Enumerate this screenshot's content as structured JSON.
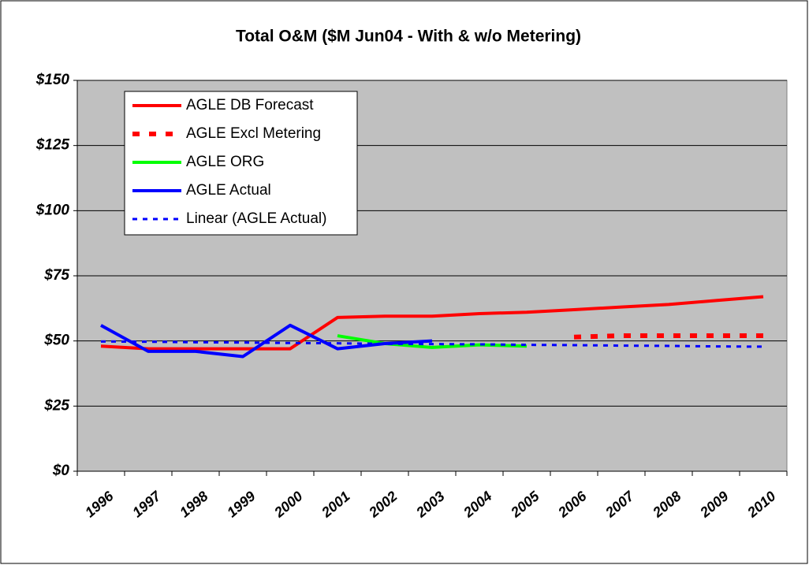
{
  "chart_data": {
    "type": "line",
    "title": "Total O&M ($M Jun04 - With & w/o Metering)",
    "categories": [
      "1996",
      "1997",
      "1998",
      "1999",
      "2000",
      "2001",
      "2002",
      "2003",
      "2004",
      "2005",
      "2006",
      "2007",
      "2008",
      "2009",
      "2010"
    ],
    "series": [
      {
        "name": "AGLE DB Forecast",
        "color": "#ff0000",
        "style": "solid",
        "values": [
          48,
          47,
          47,
          47,
          47,
          59,
          59.5,
          59.5,
          60.5,
          61,
          62,
          63,
          64,
          65.5,
          67
        ]
      },
      {
        "name": "AGLE Excl Metering",
        "color": "#ff0000",
        "style": "dashed",
        "values": [
          null,
          null,
          null,
          null,
          null,
          null,
          null,
          null,
          null,
          null,
          51.5,
          52,
          52,
          52,
          52
        ]
      },
      {
        "name": "AGLE ORG",
        "color": "#00ff00",
        "style": "solid",
        "values": [
          null,
          null,
          null,
          null,
          null,
          52,
          49,
          47.5,
          48.5,
          48,
          null,
          null,
          null,
          null,
          null
        ]
      },
      {
        "name": "AGLE Actual",
        "color": "#0000ff",
        "style": "solid",
        "values": [
          56,
          46,
          46,
          44,
          56,
          47,
          49,
          50,
          null,
          null,
          null,
          null,
          null,
          null,
          null
        ]
      },
      {
        "name": "Linear (AGLE Actual)",
        "color": "#0000ff",
        "style": "dotted",
        "values": [
          49.8,
          49.7,
          49.5,
          49.4,
          49.2,
          49.1,
          48.9,
          48.8,
          48.7,
          48.5,
          48.4,
          48.2,
          48.1,
          47.9,
          47.8
        ]
      }
    ],
    "ylim": [
      0,
      150
    ],
    "yticks": [
      {
        "value": 0,
        "label": "$0"
      },
      {
        "value": 25,
        "label": "$25"
      },
      {
        "value": 50,
        "label": "$50"
      },
      {
        "value": 75,
        "label": "$75"
      },
      {
        "value": 100,
        "label": "$100"
      },
      {
        "value": 125,
        "label": "$125"
      },
      {
        "value": 150,
        "label": "$150"
      }
    ],
    "grid": true,
    "legend": "upper-left"
  }
}
